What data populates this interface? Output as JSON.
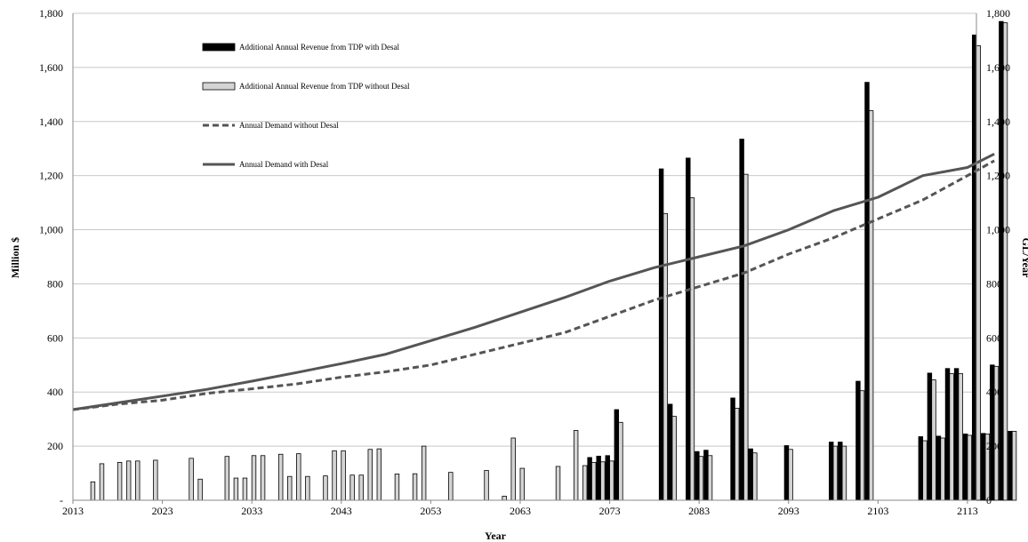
{
  "chart_data": {
    "type": "bar",
    "xlabel": "Year",
    "ylabel_left": "Million $",
    "ylabel_right": "GL/Year",
    "xlim": [
      2013,
      2114
    ],
    "ylim": [
      0,
      1800
    ],
    "y2lim": [
      0,
      1800
    ],
    "x_ticks": [
      "2013",
      "2023",
      "2033",
      "2043",
      "2053",
      "2063",
      "2073",
      "2083",
      "2093",
      "2103",
      "2113"
    ],
    "y_ticks": [
      "-",
      "200",
      "400",
      "600",
      "800",
      "1,000",
      "1,200",
      "1,400",
      "1,600",
      "1,800"
    ],
    "y2_ticks": [
      "0",
      "200",
      "400",
      "600",
      "800",
      "1,000",
      "1,200",
      "1,400",
      "1,600",
      "1,800"
    ],
    "grid": "horizontal",
    "legend_position": "top-left",
    "colors": {
      "with_desal": "#000000",
      "without_desal": "#d4d4d4",
      "bar_outline": "#000000",
      "demand_without": "#555555",
      "demand_with": "#555555",
      "grid": "#c8c8c8"
    },
    "bar_series": [
      {
        "name": "Additional Annual Revenue from TDP with Desal",
        "points": [
          [
            2071,
            158
          ],
          [
            2072,
            163
          ],
          [
            2073,
            165
          ],
          [
            2074,
            335
          ],
          [
            2079,
            1225
          ],
          [
            2080,
            355
          ],
          [
            2082,
            1265
          ],
          [
            2083,
            180
          ],
          [
            2084,
            185
          ],
          [
            2087,
            378
          ],
          [
            2088,
            1335
          ],
          [
            2089,
            190
          ],
          [
            2093,
            202
          ],
          [
            2098,
            215
          ],
          [
            2099,
            215
          ],
          [
            2101,
            440
          ],
          [
            2102,
            1545
          ],
          [
            2108,
            235
          ],
          [
            2109,
            470
          ],
          [
            2110,
            237
          ],
          [
            2111,
            487
          ],
          [
            2112,
            487
          ],
          [
            2113,
            245
          ],
          [
            2114,
            1720
          ],
          [
            2115,
            247
          ],
          [
            2116,
            500
          ],
          [
            2117,
            1770
          ],
          [
            2118,
            255
          ]
        ]
      },
      {
        "name": "Additional Annual Revenue from TDP without Desal",
        "points": [
          [
            2015,
            68
          ],
          [
            2016,
            135
          ],
          [
            2018,
            140
          ],
          [
            2019,
            145
          ],
          [
            2020,
            145
          ],
          [
            2022,
            148
          ],
          [
            2026,
            155
          ],
          [
            2027,
            78
          ],
          [
            2030,
            162
          ],
          [
            2031,
            82
          ],
          [
            2032,
            82
          ],
          [
            2033,
            165
          ],
          [
            2034,
            165
          ],
          [
            2036,
            170
          ],
          [
            2037,
            88
          ],
          [
            2038,
            172
          ],
          [
            2039,
            88
          ],
          [
            2041,
            90
          ],
          [
            2042,
            183
          ],
          [
            2043,
            183
          ],
          [
            2044,
            93
          ],
          [
            2045,
            93
          ],
          [
            2046,
            188
          ],
          [
            2047,
            190
          ],
          [
            2049,
            97
          ],
          [
            2051,
            98
          ],
          [
            2052,
            200
          ],
          [
            2055,
            103
          ],
          [
            2059,
            110
          ],
          [
            2061,
            15
          ],
          [
            2062,
            230
          ],
          [
            2063,
            118
          ],
          [
            2067,
            125
          ],
          [
            2069,
            258
          ],
          [
            2070,
            128
          ],
          [
            2071,
            140
          ],
          [
            2072,
            142
          ],
          [
            2073,
            145
          ],
          [
            2074,
            288
          ],
          [
            2079,
            1060
          ],
          [
            2080,
            310
          ],
          [
            2082,
            1118
          ],
          [
            2083,
            162
          ],
          [
            2084,
            165
          ],
          [
            2087,
            340
          ],
          [
            2088,
            1205
          ],
          [
            2089,
            175
          ],
          [
            2093,
            188
          ],
          [
            2098,
            200
          ],
          [
            2099,
            200
          ],
          [
            2101,
            405
          ],
          [
            2102,
            1440
          ],
          [
            2108,
            220
          ],
          [
            2109,
            445
          ],
          [
            2110,
            230
          ],
          [
            2111,
            468
          ],
          [
            2112,
            468
          ],
          [
            2113,
            240
          ],
          [
            2114,
            1680
          ],
          [
            2115,
            245
          ],
          [
            2116,
            495
          ],
          [
            2117,
            1765
          ],
          [
            2118,
            255
          ]
        ]
      }
    ],
    "line_series": [
      {
        "name": "Annual Demand without Desal",
        "style": "dashed",
        "points": [
          [
            2013,
            335
          ],
          [
            2018,
            355
          ],
          [
            2023,
            370
          ],
          [
            2028,
            395
          ],
          [
            2033,
            412
          ],
          [
            2038,
            430
          ],
          [
            2043,
            455
          ],
          [
            2048,
            475
          ],
          [
            2053,
            500
          ],
          [
            2058,
            540
          ],
          [
            2063,
            580
          ],
          [
            2068,
            620
          ],
          [
            2073,
            680
          ],
          [
            2078,
            740
          ],
          [
            2083,
            790
          ],
          [
            2088,
            840
          ],
          [
            2093,
            910
          ],
          [
            2098,
            970
          ],
          [
            2103,
            1040
          ],
          [
            2108,
            1110
          ],
          [
            2113,
            1200
          ],
          [
            2116,
            1255
          ]
        ]
      },
      {
        "name": "Annual Demand with Desal",
        "style": "solid",
        "points": [
          [
            2013,
            335
          ],
          [
            2018,
            360
          ],
          [
            2023,
            385
          ],
          [
            2028,
            410
          ],
          [
            2033,
            440
          ],
          [
            2038,
            472
          ],
          [
            2043,
            505
          ],
          [
            2048,
            540
          ],
          [
            2053,
            590
          ],
          [
            2058,
            640
          ],
          [
            2063,
            695
          ],
          [
            2068,
            750
          ],
          [
            2073,
            810
          ],
          [
            2078,
            860
          ],
          [
            2083,
            900
          ],
          [
            2088,
            940
          ],
          [
            2093,
            1000
          ],
          [
            2098,
            1070
          ],
          [
            2103,
            1120
          ],
          [
            2108,
            1200
          ],
          [
            2113,
            1230
          ],
          [
            2116,
            1280
          ]
        ]
      }
    ]
  }
}
